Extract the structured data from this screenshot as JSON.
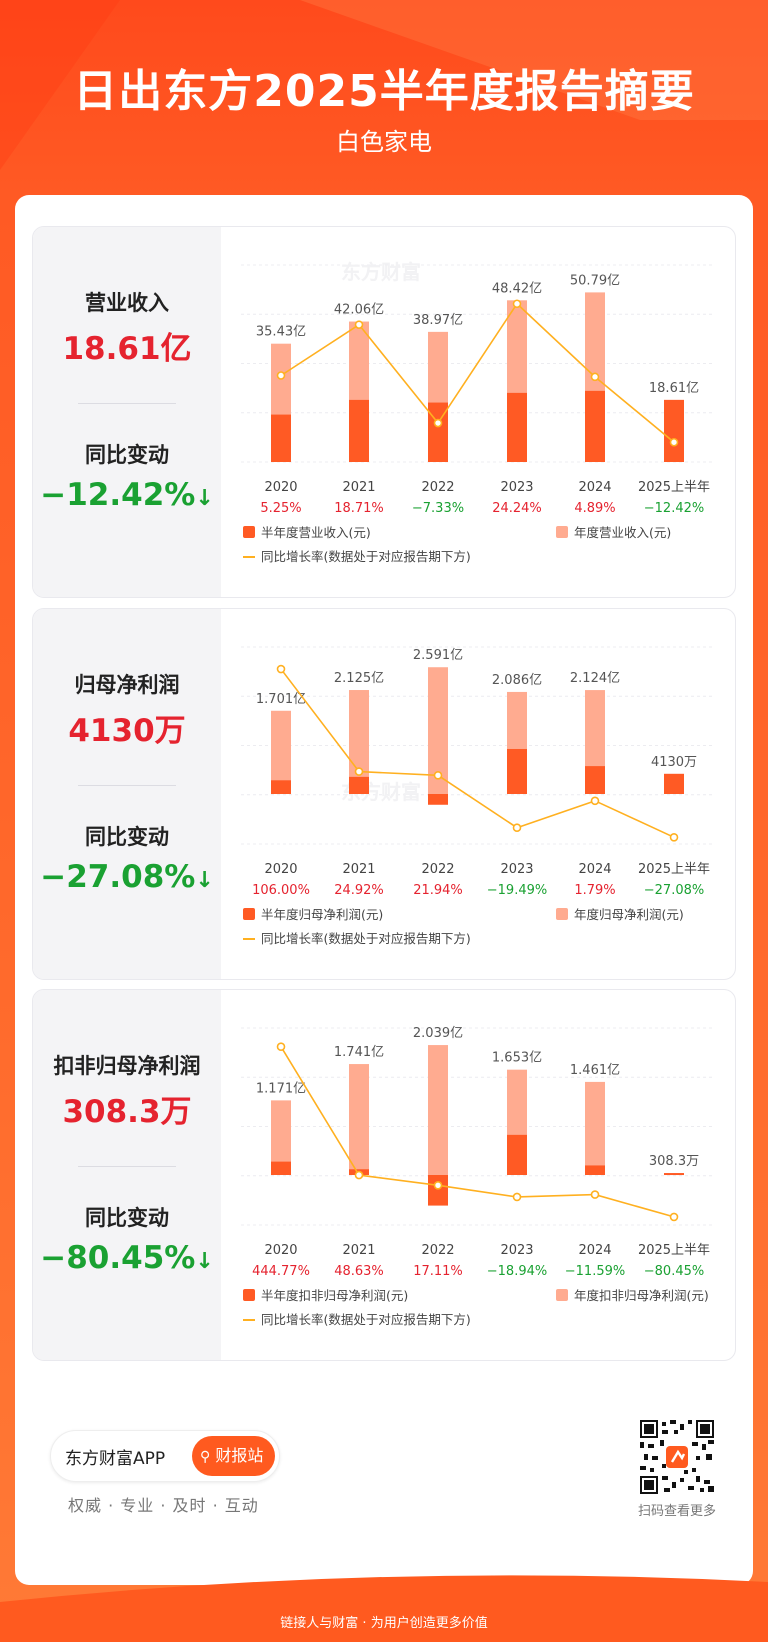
{
  "header": {
    "title": "日出东方2025半年度报告摘要",
    "subtitle": "白色家电"
  },
  "cards": [
    {
      "metric_label": "营业收入",
      "metric_value": "18.61亿",
      "change_label": "同比变动",
      "change_value": "−12.42%",
      "watermark": "东方财富",
      "legend": {
        "half": "半年度营业收入(元)",
        "annual": "年度营业收入(元)",
        "rate": "同比增长率(数据处于对应报告期下方)"
      }
    },
    {
      "metric_label": "归母净利润",
      "metric_value": "4130万",
      "change_label": "同比变动",
      "change_value": "−27.08%",
      "watermark": "东方财富",
      "legend": {
        "half": "半年度归母净利润(元)",
        "annual": "年度归母净利润(元)",
        "rate": "同比增长率(数据处于对应报告期下方)"
      }
    },
    {
      "metric_label": "扣非归母净利润",
      "metric_value": "308.3万",
      "change_label": "同比变动",
      "change_value": "−80.45%",
      "watermark": "",
      "legend": {
        "half": "半年度扣非归母净利润(元)",
        "annual": "年度扣非归母净利润(元)",
        "rate": "同比增长率(数据处于对应报告期下方)"
      }
    }
  ],
  "colors": {
    "half_bar": "#ff5a24",
    "annual_bar": "#ffab90",
    "rate_line": "#ffb020",
    "positive": "#e5232f",
    "negative": "#1aa132"
  },
  "chart_data": [
    {
      "type": "bar",
      "categories": [
        "2020",
        "2021",
        "2022",
        "2023",
        "2024",
        "2025上半年"
      ],
      "annual_labels": [
        "35.43亿",
        "42.06亿",
        "38.97亿",
        "48.42亿",
        "50.79亿",
        "18.61亿"
      ],
      "series": [
        {
          "name": "半年度营业收入(元)",
          "values": [
            14.2,
            18.6,
            17.8,
            20.7,
            21.3,
            18.61
          ]
        },
        {
          "name": "年度营业收入(元)",
          "values": [
            35.43,
            42.06,
            38.97,
            48.42,
            50.79,
            null
          ]
        },
        {
          "name": "同比增长率(数据处于对应报告期下方)",
          "values": [
            5.25,
            18.71,
            -7.33,
            24.24,
            4.89,
            -12.42
          ]
        }
      ],
      "rate_labels": [
        "5.25%",
        "18.71%",
        "−7.33%",
        "24.24%",
        "4.89%",
        "−12.42%"
      ]
    },
    {
      "type": "bar",
      "categories": [
        "2020",
        "2021",
        "2022",
        "2023",
        "2024",
        "2025上半年"
      ],
      "annual_labels": [
        "1.701亿",
        "2.125亿",
        "2.591亿",
        "2.086亿",
        "2.124亿",
        "4130万"
      ],
      "series": [
        {
          "name": "半年度归母净利润(元)",
          "values": [
            0.28,
            0.35,
            -0.22,
            0.92,
            0.57,
            0.413
          ]
        },
        {
          "name": "年度归母净利润(元)",
          "values": [
            1.701,
            2.125,
            2.591,
            2.086,
            2.124,
            null
          ]
        },
        {
          "name": "同比增长率(数据处于对应报告期下方)",
          "values": [
            106.0,
            24.92,
            21.94,
            -19.49,
            1.79,
            -27.08
          ]
        }
      ],
      "rate_labels": [
        "106.00%",
        "24.92%",
        "21.94%",
        "−19.49%",
        "1.79%",
        "−27.08%"
      ]
    },
    {
      "type": "bar",
      "categories": [
        "2020",
        "2021",
        "2022",
        "2023",
        "2024",
        "2025上半年"
      ],
      "annual_labels": [
        "1.171亿",
        "1.741亿",
        "2.039亿",
        "1.653亿",
        "1.461亿",
        "308.3万"
      ],
      "series": [
        {
          "name": "半年度扣非归母净利润(元)",
          "values": [
            0.21,
            0.09,
            -0.48,
            0.63,
            0.15,
            0.0308
          ]
        },
        {
          "name": "年度扣非归母净利润(元)",
          "values": [
            1.171,
            1.741,
            2.039,
            1.653,
            1.461,
            null
          ]
        },
        {
          "name": "同比增长率(数据处于对应报告期下方)",
          "values": [
            444.77,
            48.63,
            17.11,
            -18.94,
            -11.59,
            -80.45
          ]
        }
      ],
      "rate_labels": [
        "444.77%",
        "48.63%",
        "17.11%",
        "−18.94%",
        "−11.59%",
        "−80.45%"
      ]
    }
  ],
  "footer": {
    "app_name": "东方财富APP",
    "button_label": "财报站",
    "tagline": "权威 · 专业 · 及时 · 互动",
    "qr_label": "扫码查看更多",
    "bottom_text": "链接人与财富 · 为用户创造更多价值"
  }
}
